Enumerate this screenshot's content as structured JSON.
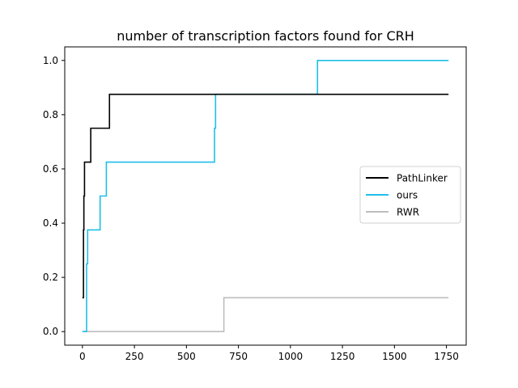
{
  "chart_data": {
    "type": "line",
    "step": "post",
    "title": "number of transcription factors found for CRH",
    "xlabel": "",
    "ylabel": "",
    "xlim": [
      -85,
      1845
    ],
    "ylim": [
      -0.05,
      1.05
    ],
    "xticks": [
      0,
      250,
      500,
      750,
      1000,
      1250,
      1500,
      1750
    ],
    "yticks": [
      0.0,
      0.2,
      0.4,
      0.6,
      0.8,
      1.0
    ],
    "xtick_labels": [
      "0",
      "250",
      "500",
      "750",
      "1000",
      "1250",
      "1500",
      "1750"
    ],
    "ytick_labels": [
      "0.0",
      "0.2",
      "0.4",
      "0.6",
      "0.8",
      "1.0"
    ],
    "grid": false,
    "legend_position": "center-right",
    "series": [
      {
        "name": "PathLinker",
        "color": "#000000",
        "x": [
          0,
          5,
          7,
          10,
          40,
          130,
          1760
        ],
        "y": [
          0.125,
          0.375,
          0.5,
          0.625,
          0.75,
          0.875,
          0.875
        ]
      },
      {
        "name": "ours",
        "color": "#1ebfe8",
        "x": [
          0,
          20,
          25,
          85,
          115,
          635,
          640,
          1130,
          1760
        ],
        "y": [
          0.0,
          0.25,
          0.375,
          0.5,
          0.625,
          0.75,
          0.875,
          1.0,
          1.0
        ]
      },
      {
        "name": "RWR",
        "color": "#bdbdbd",
        "x": [
          0,
          680,
          1760
        ],
        "y": [
          0.0,
          0.125,
          0.125
        ]
      }
    ]
  }
}
